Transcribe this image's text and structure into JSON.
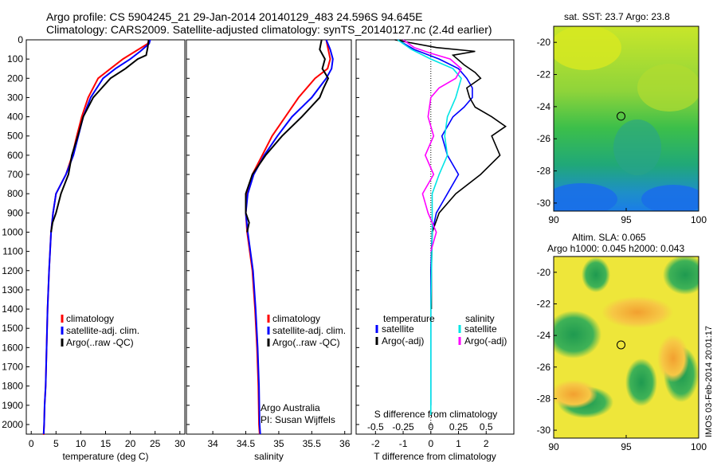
{
  "header": {
    "line1": "Argo profile: CS 5904245_21 29-Jan-2014 20140129_483 24.596S 94.645E",
    "line2": "Climatology: CARS2009. Satellite-adjusted climatology: synTS_20140127.nc (2.4d earlier)"
  },
  "colors": {
    "climatology": "#ff0000",
    "satellite": "#0000ff",
    "argo": "#000000",
    "sat_s": "#00e5e5",
    "argo_s": "#ff00ff"
  },
  "chart_data": [
    {
      "type": "line",
      "id": "temperature",
      "xlabel": "temperature (deg C)",
      "ylabel": "",
      "xlim": [
        -1,
        31
      ],
      "ylim": [
        2050,
        0
      ],
      "xticks": [
        "0",
        "5",
        "10",
        "15",
        "20",
        "25",
        "30"
      ],
      "yticks": [
        "0",
        "100",
        "200",
        "300",
        "400",
        "500",
        "600",
        "700",
        "800",
        "900",
        "1000",
        "1100",
        "1200",
        "1300",
        "1400",
        "1500",
        "1600",
        "1700",
        "1800",
        "1900",
        "2000"
      ],
      "legend": [
        "climatology",
        "satellite-adj. clim.",
        "Argo(..raw -QC)"
      ],
      "series": [
        {
          "name": "climatology",
          "x": [
            23.8,
            23.5,
            21,
            18.5,
            16,
            13.5,
            11.5,
            10.2,
            9.2,
            8.3,
            7,
            5,
            4.4,
            4,
            3.6,
            3.3,
            3.1,
            2.9,
            2.7,
            2.6,
            2.5,
            2.4
          ],
          "y": [
            0,
            20,
            60,
            100,
            150,
            200,
            300,
            400,
            500,
            600,
            700,
            800,
            900,
            1000,
            1200,
            1400,
            1600,
            1800,
            1900,
            2000,
            2050,
            2050
          ]
        },
        {
          "name": "satellite-adj. clim.",
          "x": [
            24,
            23.8,
            22,
            20,
            17,
            14.5,
            12,
            10.5,
            9.5,
            8.5,
            7,
            5,
            4.4,
            4,
            3.6,
            3.3,
            3.1,
            2.9,
            2.7,
            2.6,
            2.5
          ],
          "y": [
            0,
            20,
            60,
            100,
            150,
            200,
            300,
            400,
            500,
            600,
            700,
            800,
            900,
            1000,
            1200,
            1400,
            1600,
            1800,
            1900,
            2000,
            2050
          ]
        },
        {
          "name": "Argo(..raw -QC)",
          "x": [
            23.7,
            23.5,
            23.2,
            21.5,
            19,
            16,
            12.5,
            10.5,
            9.4,
            8.2,
            7.5,
            6,
            5,
            4.3,
            4
          ],
          "y": [
            0,
            40,
            80,
            100,
            150,
            200,
            300,
            400,
            500,
            600,
            700,
            800,
            900,
            950,
            1000
          ]
        }
      ]
    },
    {
      "type": "line",
      "id": "salinity",
      "xlabel": "salinity",
      "xlim": [
        33.6,
        36.1
      ],
      "ylim": [
        2050,
        0
      ],
      "xticks": [
        "34",
        "34.5",
        "35",
        "35.5",
        "36"
      ],
      "legend": [
        "climatology",
        "satellite-adj. clim.",
        "Argo(..raw -QC)"
      ],
      "annotations": [
        "Argo Australia",
        "PI: Susan Wijffels"
      ],
      "series": [
        {
          "name": "climatology",
          "x": [
            35.72,
            35.75,
            35.78,
            35.74,
            35.55,
            35.3,
            35.1,
            34.9,
            34.75,
            34.6,
            34.52,
            34.5,
            34.52,
            34.56,
            34.6,
            34.64,
            34.67,
            34.69,
            34.7,
            34.71
          ],
          "y": [
            0,
            50,
            100,
            150,
            200,
            300,
            400,
            500,
            600,
            700,
            800,
            900,
            1000,
            1100,
            1200,
            1400,
            1600,
            1800,
            2000,
            2050
          ]
        },
        {
          "name": "satellite-adj. clim.",
          "x": [
            35.72,
            35.78,
            35.82,
            35.8,
            35.72,
            35.5,
            35.2,
            34.98,
            34.78,
            34.62,
            34.53,
            34.5,
            34.53,
            34.57,
            34.61,
            34.65,
            34.68,
            34.7,
            34.71,
            34.72
          ],
          "y": [
            0,
            50,
            100,
            150,
            200,
            300,
            400,
            500,
            600,
            700,
            800,
            900,
            1000,
            1100,
            1200,
            1400,
            1600,
            1800,
            2000,
            2050
          ]
        },
        {
          "name": "Argo(..raw -QC)",
          "x": [
            35.65,
            35.62,
            35.7,
            35.66,
            35.75,
            35.68,
            35.62,
            35.35,
            35.05,
            34.8,
            34.6,
            34.5,
            34.5,
            34.55,
            34.52
          ],
          "y": [
            0,
            50,
            100,
            150,
            200,
            250,
            300,
            400,
            500,
            600,
            700,
            800,
            900,
            950,
            1000
          ]
        }
      ]
    },
    {
      "type": "line",
      "id": "difference",
      "xlabel": "T difference from climatology",
      "xlabel2": "S difference from climatology",
      "xlim": [
        -2.7,
        3
      ],
      "ylim": [
        2050,
        0
      ],
      "xticks": [
        "-2",
        "-1",
        "0",
        "1",
        "2"
      ],
      "xticks_top": [
        "-0.5",
        "-0.25",
        "0",
        "0.25",
        "0.5"
      ],
      "legend_titles": [
        "temperature",
        "salinity"
      ],
      "legend": [
        "satellite",
        "Argo(-adj)",
        "satellite",
        "Argo(-adj)"
      ],
      "series": [
        {
          "name": "satellite",
          "x": [
            -1.2,
            -0.6,
            0.3,
            1.0,
            1.3,
            1.5,
            1.5,
            1.2,
            0.8,
            0.4,
            0.6,
            1.0,
            0.6,
            0.2,
            0.05,
            0,
            0,
            0,
            0
          ],
          "y": [
            0,
            50,
            100,
            150,
            200,
            250,
            300,
            350,
            400,
            500,
            600,
            700,
            800,
            900,
            1000,
            1200,
            1500,
            1800,
            1900
          ]
        },
        {
          "name": "Argo(-adj)",
          "x": [
            -1.3,
            0.2,
            1.6,
            0.8,
            1.2,
            1.6,
            1.8,
            1.3,
            1.4,
            1.6,
            2.2,
            2.7,
            2.2,
            2.5,
            1.8,
            0.9,
            0.3,
            0.05,
            0.02,
            0.02
          ],
          "y": [
            0,
            40,
            60,
            80,
            130,
            170,
            200,
            250,
            300,
            350,
            400,
            450,
            500,
            600,
            700,
            800,
            900,
            1000,
            1200,
            1400
          ]
        },
        {
          "name": "satellite",
          "x": [
            -1.2,
            -0.7,
            0,
            0.8,
            1.1,
            0.9,
            0.6,
            0.5,
            0.6,
            0.3,
            0.05,
            0.05,
            0.0,
            0.0,
            0.0
          ],
          "y": [
            0,
            50,
            100,
            150,
            200,
            300,
            400,
            500,
            600,
            700,
            800,
            1000,
            1400,
            1800,
            1950
          ]
        },
        {
          "name": "Argo(-adj)",
          "x": [
            -1.0,
            -0.6,
            0,
            0.7,
            1.1,
            0.9,
            0.3,
            0,
            -0.1,
            0.1,
            -0.2,
            0.1,
            -0.3,
            -0.1,
            0.2,
            0
          ],
          "y": [
            0,
            40,
            70,
            100,
            150,
            200,
            250,
            300,
            400,
            500,
            600,
            700,
            800,
            900,
            1000,
            1100
          ]
        }
      ]
    },
    {
      "type": "heatmap",
      "id": "sst-map",
      "title": "sat. SST: 23.7  Argo: 23.8",
      "xlim": [
        90,
        100
      ],
      "ylim": [
        -30.5,
        -19
      ],
      "xticks": [
        "90",
        "95",
        "100"
      ],
      "yticks": [
        "-20",
        "-22",
        "-24",
        "-26",
        "-28",
        "-30"
      ],
      "marker": {
        "lon": 94.645,
        "lat": -24.596
      }
    },
    {
      "type": "heatmap",
      "id": "sla-map",
      "title_line1": "Altim. SLA: 0.065",
      "title_line2": "Argo h1000: 0.045 h2000: 0.043",
      "xlim": [
        90,
        100
      ],
      "ylim": [
        -30.5,
        -19
      ],
      "xticks": [
        "90",
        "95",
        "100"
      ],
      "yticks": [
        "-20",
        "-22",
        "-24",
        "-26",
        "-28",
        "-30"
      ],
      "marker": {
        "lon": 94.645,
        "lat": -24.596
      }
    }
  ],
  "footer": {
    "stamp": "IMOS 03-Feb-2014 20:01:17"
  }
}
